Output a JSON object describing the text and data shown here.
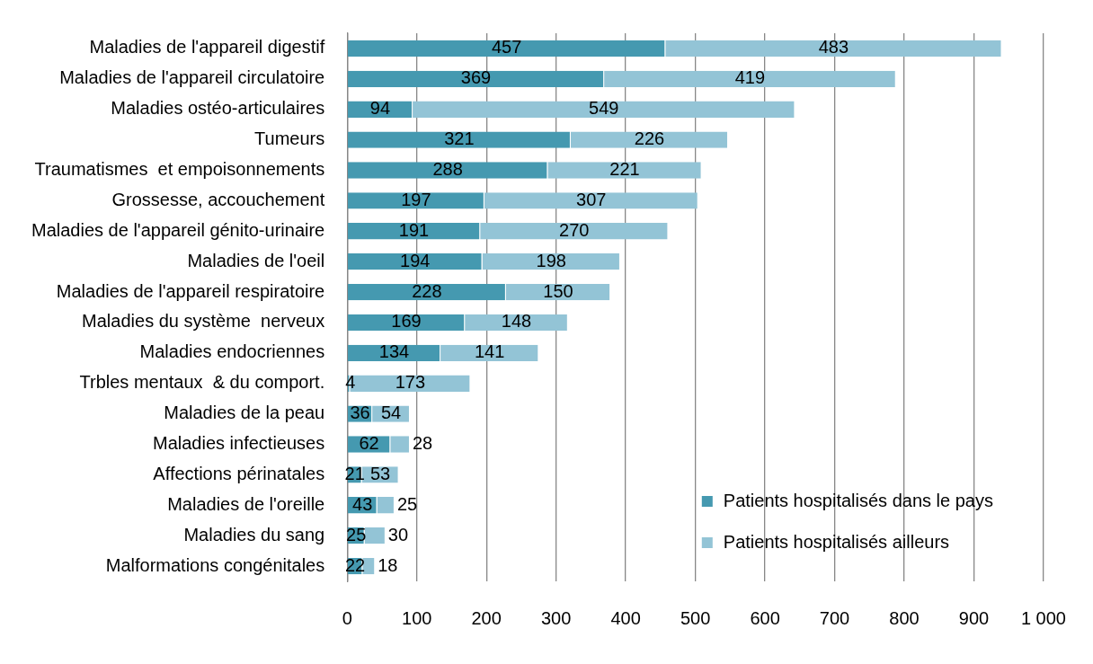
{
  "chart_data": {
    "type": "bar",
    "orientation": "horizontal",
    "stacked": true,
    "categories": [
      "Maladies de l'appareil digestif",
      "Maladies de l'appareil circulatoire",
      "Maladies ostéo-articulaires",
      "Tumeurs",
      "Traumatismes  et empoisonnements",
      "Grossesse, accouchement",
      "Maladies de l'appareil génito-urinaire",
      "Maladies de l'oeil",
      "Maladies de l'appareil respiratoire",
      "Maladies du système  nerveux",
      "Maladies endocriennes",
      "Trbles mentaux  & du comport.",
      "Maladies de la peau",
      "Maladies infectieuses",
      "Affections périnatales",
      "Maladies de l'oreille",
      "Maladies du sang",
      "Malformations congénitales"
    ],
    "series": [
      {
        "name": "Patients hospitalisés dans le pays",
        "color": "#4599b0",
        "values": [
          457,
          369,
          94,
          321,
          288,
          197,
          191,
          194,
          228,
          169,
          134,
          4,
          36,
          62,
          21,
          43,
          25,
          22
        ]
      },
      {
        "name": "Patients hospitalisés ailleurs",
        "color": "#93c4d6",
        "values": [
          483,
          419,
          549,
          226,
          221,
          307,
          270,
          198,
          150,
          148,
          141,
          173,
          54,
          28,
          53,
          25,
          30,
          18
        ]
      }
    ],
    "xlim": [
      0,
      1000
    ],
    "xticks": [
      0,
      100,
      200,
      300,
      400,
      500,
      600,
      700,
      800,
      900,
      {
        "value": 1000,
        "label": "1 000"
      }
    ],
    "grid": "x",
    "legend": "bottom right",
    "data_labels": true
  }
}
